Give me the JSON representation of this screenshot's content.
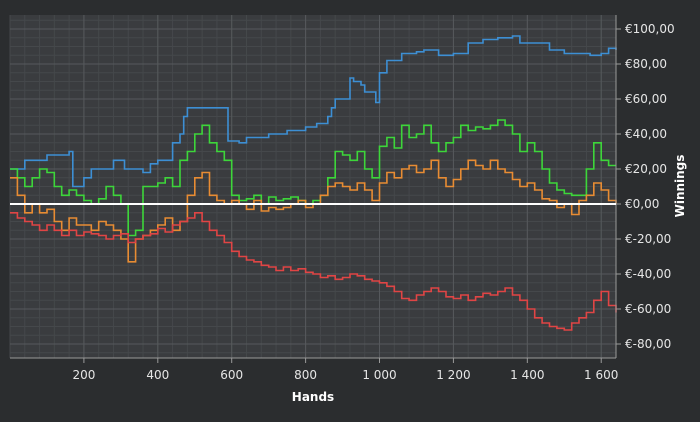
{
  "chart_data": {
    "type": "line",
    "xlabel": "Hands",
    "ylabel": "Winnings",
    "xlim": [
      0,
      1640
    ],
    "ylim": [
      -88,
      108
    ],
    "x_ticks": [
      200,
      400,
      600,
      800,
      1000,
      1200,
      1400,
      1600
    ],
    "x_tick_labels": [
      "200",
      "400",
      "600",
      "800",
      "1 000",
      "1 200",
      "1 400",
      "1 600"
    ],
    "y_ticks": [
      100,
      80,
      60,
      40,
      20,
      0,
      -20,
      -40,
      -60,
      -80
    ],
    "y_tick_labels": [
      "€100,00",
      "€80,00",
      "€60,00",
      "€40,00",
      "€20,00",
      "€0,00",
      "€-20,00",
      "€-40,00",
      "€-60,00",
      "€-80,00"
    ],
    "grid": true,
    "y_axis_side": "right",
    "zero_line": true,
    "series": [
      {
        "color": "#3d8fd4",
        "x": [
          0,
          30,
          40,
          100,
          160,
          170,
          200,
          220,
          280,
          310,
          320,
          360,
          380,
          400,
          440,
          460,
          470,
          480,
          500,
          520,
          580,
          590,
          620,
          640,
          700,
          750,
          800,
          830,
          860,
          870,
          880,
          920,
          930,
          950,
          960,
          990,
          1000,
          1020,
          1060,
          1100,
          1120,
          1160,
          1200,
          1240,
          1280,
          1320,
          1360,
          1380,
          1420,
          1460,
          1500,
          1540,
          1570,
          1600,
          1620,
          1640
        ],
        "y": [
          20,
          20,
          25,
          28,
          30,
          10,
          15,
          20,
          25,
          20,
          20,
          18,
          23,
          25,
          35,
          40,
          50,
          55,
          55,
          55,
          55,
          36,
          35,
          38,
          40,
          42,
          44,
          46,
          50,
          55,
          60,
          72,
          70,
          68,
          64,
          58,
          75,
          82,
          86,
          87,
          88,
          85,
          86,
          92,
          94,
          95,
          96,
          92,
          92,
          88,
          86,
          86,
          85,
          86,
          89,
          88
        ]
      },
      {
        "color": "#3dd63a",
        "x": [
          0,
          20,
          40,
          60,
          80,
          100,
          120,
          140,
          160,
          180,
          200,
          220,
          240,
          260,
          280,
          300,
          320,
          340,
          360,
          380,
          400,
          420,
          440,
          460,
          480,
          500,
          520,
          540,
          560,
          580,
          600,
          620,
          640,
          660,
          680,
          700,
          720,
          740,
          760,
          780,
          800,
          820,
          840,
          860,
          880,
          900,
          920,
          940,
          960,
          980,
          1000,
          1020,
          1040,
          1060,
          1080,
          1100,
          1120,
          1140,
          1160,
          1180,
          1200,
          1220,
          1240,
          1260,
          1280,
          1300,
          1320,
          1340,
          1360,
          1380,
          1400,
          1420,
          1440,
          1460,
          1480,
          1500,
          1520,
          1540,
          1560,
          1580,
          1600,
          1620,
          1640
        ],
        "y": [
          20,
          15,
          10,
          15,
          20,
          18,
          10,
          5,
          8,
          5,
          2,
          0,
          3,
          10,
          5,
          0,
          -18,
          -15,
          10,
          10,
          12,
          15,
          10,
          25,
          30,
          40,
          45,
          35,
          30,
          25,
          5,
          2,
          3,
          5,
          0,
          4,
          2,
          3,
          4,
          2,
          0,
          2,
          5,
          15,
          30,
          28,
          25,
          30,
          20,
          15,
          33,
          38,
          32,
          45,
          38,
          40,
          45,
          35,
          30,
          35,
          38,
          45,
          42,
          44,
          43,
          45,
          48,
          45,
          40,
          30,
          35,
          30,
          20,
          12,
          8,
          6,
          5,
          5,
          20,
          35,
          25,
          22,
          22
        ]
      },
      {
        "color": "#e88c33",
        "x": [
          0,
          20,
          40,
          60,
          80,
          100,
          120,
          140,
          160,
          180,
          200,
          220,
          240,
          260,
          280,
          300,
          320,
          340,
          360,
          380,
          400,
          420,
          440,
          460,
          480,
          500,
          520,
          540,
          560,
          580,
          600,
          620,
          640,
          660,
          680,
          700,
          720,
          740,
          760,
          780,
          800,
          820,
          840,
          860,
          880,
          900,
          920,
          940,
          960,
          980,
          1000,
          1020,
          1040,
          1060,
          1080,
          1100,
          1120,
          1140,
          1160,
          1180,
          1200,
          1220,
          1240,
          1260,
          1280,
          1300,
          1320,
          1340,
          1360,
          1380,
          1400,
          1420,
          1440,
          1460,
          1480,
          1500,
          1520,
          1540,
          1560,
          1580,
          1600,
          1620,
          1640
        ],
        "y": [
          15,
          5,
          -5,
          0,
          -5,
          -3,
          -10,
          -15,
          -8,
          -12,
          -12,
          -15,
          -10,
          -12,
          -15,
          -20,
          -33,
          -20,
          -18,
          -15,
          -12,
          -8,
          -15,
          -10,
          5,
          15,
          18,
          5,
          2,
          0,
          2,
          0,
          -3,
          2,
          -4,
          -2,
          -3,
          -2,
          0,
          2,
          -2,
          0,
          5,
          10,
          12,
          10,
          8,
          12,
          8,
          2,
          12,
          18,
          15,
          20,
          22,
          18,
          20,
          25,
          15,
          10,
          14,
          20,
          25,
          22,
          20,
          25,
          20,
          18,
          14,
          10,
          12,
          8,
          3,
          2,
          -2,
          0,
          -6,
          2,
          5,
          12,
          8,
          2,
          0
        ]
      },
      {
        "color": "#e04545",
        "x": [
          0,
          20,
          40,
          60,
          80,
          100,
          120,
          140,
          160,
          180,
          200,
          220,
          240,
          260,
          280,
          300,
          320,
          340,
          360,
          380,
          400,
          420,
          440,
          460,
          480,
          500,
          520,
          540,
          560,
          580,
          600,
          620,
          640,
          660,
          680,
          700,
          720,
          740,
          760,
          780,
          800,
          820,
          840,
          860,
          880,
          900,
          920,
          940,
          960,
          980,
          1000,
          1020,
          1040,
          1060,
          1080,
          1100,
          1120,
          1140,
          1160,
          1180,
          1200,
          1220,
          1240,
          1260,
          1280,
          1300,
          1320,
          1340,
          1360,
          1380,
          1400,
          1420,
          1440,
          1460,
          1480,
          1500,
          1520,
          1540,
          1560,
          1580,
          1600,
          1620,
          1640
        ],
        "y": [
          -5,
          -8,
          -10,
          -12,
          -15,
          -12,
          -15,
          -18,
          -15,
          -18,
          -16,
          -17,
          -18,
          -20,
          -18,
          -17,
          -22,
          -20,
          -18,
          -17,
          -14,
          -16,
          -12,
          -10,
          -8,
          -5,
          -10,
          -15,
          -18,
          -22,
          -27,
          -30,
          -32,
          -33,
          -35,
          -36,
          -38,
          -36,
          -38,
          -37,
          -39,
          -40,
          -42,
          -41,
          -43,
          -42,
          -40,
          -41,
          -43,
          -44,
          -45,
          -47,
          -50,
          -54,
          -55,
          -52,
          -50,
          -48,
          -50,
          -53,
          -54,
          -52,
          -55,
          -53,
          -51,
          -52,
          -50,
          -48,
          -52,
          -55,
          -60,
          -65,
          -68,
          -70,
          -71,
          -72,
          -68,
          -65,
          -62,
          -55,
          -50,
          -58,
          -62
        ]
      }
    ]
  }
}
